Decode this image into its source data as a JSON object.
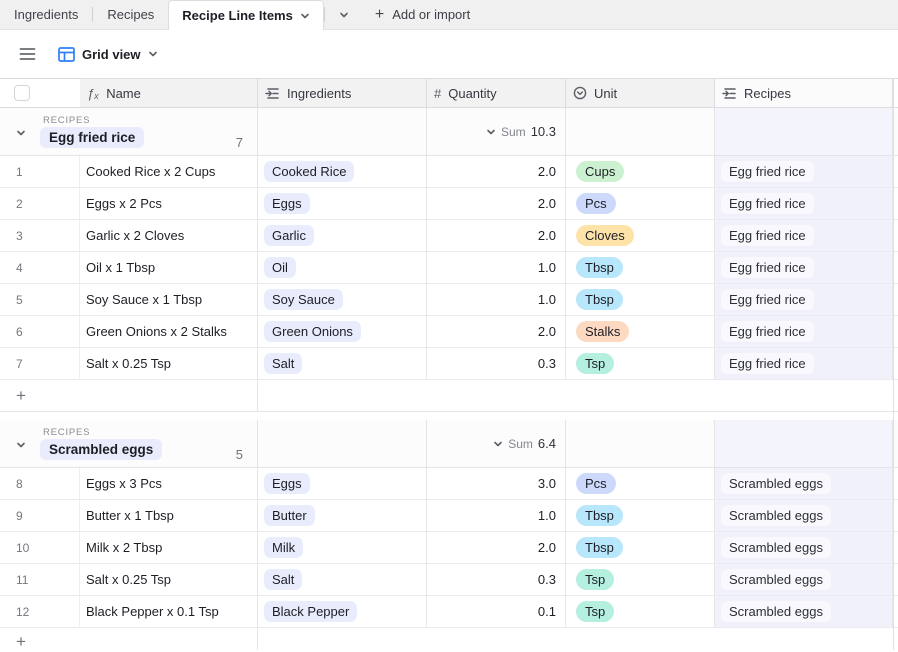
{
  "tabs": {
    "items": [
      {
        "label": "Ingredients"
      },
      {
        "label": "Recipes"
      },
      {
        "label": "Recipe Line Items"
      }
    ],
    "add_label": "Add or import"
  },
  "icons": {
    "plus": "+",
    "number": "#",
    "formula": "ƒₓ"
  },
  "toolbar": {
    "view_label": "Grid view"
  },
  "colors": {
    "accent_blue": "#2d7ff9",
    "group_pill": "#e8ecfc",
    "unit_green": "#ccf1d1",
    "unit_blue": "#ccd9fb",
    "unit_amber": "#fde3a7",
    "unit_cyan": "#b8e6fb",
    "unit_orange": "#fed9c2",
    "unit_teal": "#b5efe0",
    "recipes_cell": "#f0f1fb"
  },
  "table": {
    "columns": [
      {
        "label": "Name",
        "icon": "formula-icon"
      },
      {
        "label": "Ingredients",
        "icon": "linked-record-icon"
      },
      {
        "label": "Quantity",
        "icon": "number-icon"
      },
      {
        "label": "Unit",
        "icon": "single-select-icon"
      },
      {
        "label": "Recipes",
        "icon": "linked-record-icon"
      }
    ],
    "groups": [
      {
        "field_label": "RECIPES",
        "value": "Egg fried rice",
        "count": "7",
        "summary_label": "Sum",
        "summary_value": "10.3",
        "rows": [
          {
            "num": "1",
            "name": "Cooked Rice x 2 Cups",
            "ingredient": "Cooked Rice",
            "quantity": "2.0",
            "unit": "Cups",
            "unit_color": "green",
            "recipe": "Egg fried rice"
          },
          {
            "num": "2",
            "name": "Eggs x 2 Pcs",
            "ingredient": "Eggs",
            "quantity": "2.0",
            "unit": "Pcs",
            "unit_color": "blue",
            "recipe": "Egg fried rice"
          },
          {
            "num": "3",
            "name": "Garlic x 2 Cloves",
            "ingredient": "Garlic",
            "quantity": "2.0",
            "unit": "Cloves",
            "unit_color": "amber",
            "recipe": "Egg fried rice"
          },
          {
            "num": "4",
            "name": "Oil x 1 Tbsp",
            "ingredient": "Oil",
            "quantity": "1.0",
            "unit": "Tbsp",
            "unit_color": "cyan",
            "recipe": "Egg fried rice"
          },
          {
            "num": "5",
            "name": "Soy Sauce x 1 Tbsp",
            "ingredient": "Soy Sauce",
            "quantity": "1.0",
            "unit": "Tbsp",
            "unit_color": "cyan",
            "recipe": "Egg fried rice"
          },
          {
            "num": "6",
            "name": "Green Onions x 2 Stalks",
            "ingredient": "Green Onions",
            "quantity": "2.0",
            "unit": "Stalks",
            "unit_color": "orange",
            "recipe": "Egg fried rice"
          },
          {
            "num": "7",
            "name": "Salt x 0.25 Tsp",
            "ingredient": "Salt",
            "quantity": "0.3",
            "unit": "Tsp",
            "unit_color": "teal",
            "recipe": "Egg fried rice"
          }
        ]
      },
      {
        "field_label": "RECIPES",
        "value": "Scrambled eggs",
        "count": "5",
        "summary_label": "Sum",
        "summary_value": "6.4",
        "rows": [
          {
            "num": "8",
            "name": "Eggs x 3 Pcs",
            "ingredient": "Eggs",
            "quantity": "3.0",
            "unit": "Pcs",
            "unit_color": "blue",
            "recipe": "Scrambled eggs"
          },
          {
            "num": "9",
            "name": "Butter x 1 Tbsp",
            "ingredient": "Butter",
            "quantity": "1.0",
            "unit": "Tbsp",
            "unit_color": "cyan",
            "recipe": "Scrambled eggs"
          },
          {
            "num": "10",
            "name": "Milk x 2 Tbsp",
            "ingredient": "Milk",
            "quantity": "2.0",
            "unit": "Tbsp",
            "unit_color": "cyan",
            "recipe": "Scrambled eggs"
          },
          {
            "num": "11",
            "name": "Salt x 0.25 Tsp",
            "ingredient": "Salt",
            "quantity": "0.3",
            "unit": "Tsp",
            "unit_color": "teal",
            "recipe": "Scrambled eggs"
          },
          {
            "num": "12",
            "name": "Black Pepper x 0.1 Tsp",
            "ingredient": "Black Pepper",
            "quantity": "0.1",
            "unit": "Tsp",
            "unit_color": "teal",
            "recipe": "Scrambled eggs"
          }
        ]
      }
    ]
  }
}
